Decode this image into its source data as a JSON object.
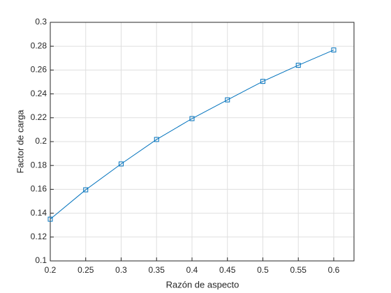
{
  "chart_data": {
    "type": "line",
    "xlabel": "Razón de aspecto",
    "ylabel": "Factor de carga",
    "x": [
      0.2,
      0.25,
      0.3,
      0.35,
      0.4,
      0.45,
      0.5,
      0.55,
      0.6
    ],
    "series": [
      {
        "color": "#0072bd",
        "marker": "square",
        "values": [
          0.135,
          0.1596,
          0.1813,
          0.2018,
          0.2193,
          0.235,
          0.2505,
          0.264,
          0.2768
        ]
      }
    ],
    "xlim": [
      0.2,
      0.6286
    ],
    "xticks": [
      0.2,
      0.25,
      0.3,
      0.35,
      0.4,
      0.45,
      0.5,
      0.55,
      0.6
    ],
    "ylim": [
      0.1,
      0.3
    ],
    "yticks": [
      0.1,
      0.12,
      0.14,
      0.16,
      0.18,
      0.2,
      0.22,
      0.24,
      0.26,
      0.28,
      0.3
    ],
    "grid": true
  }
}
